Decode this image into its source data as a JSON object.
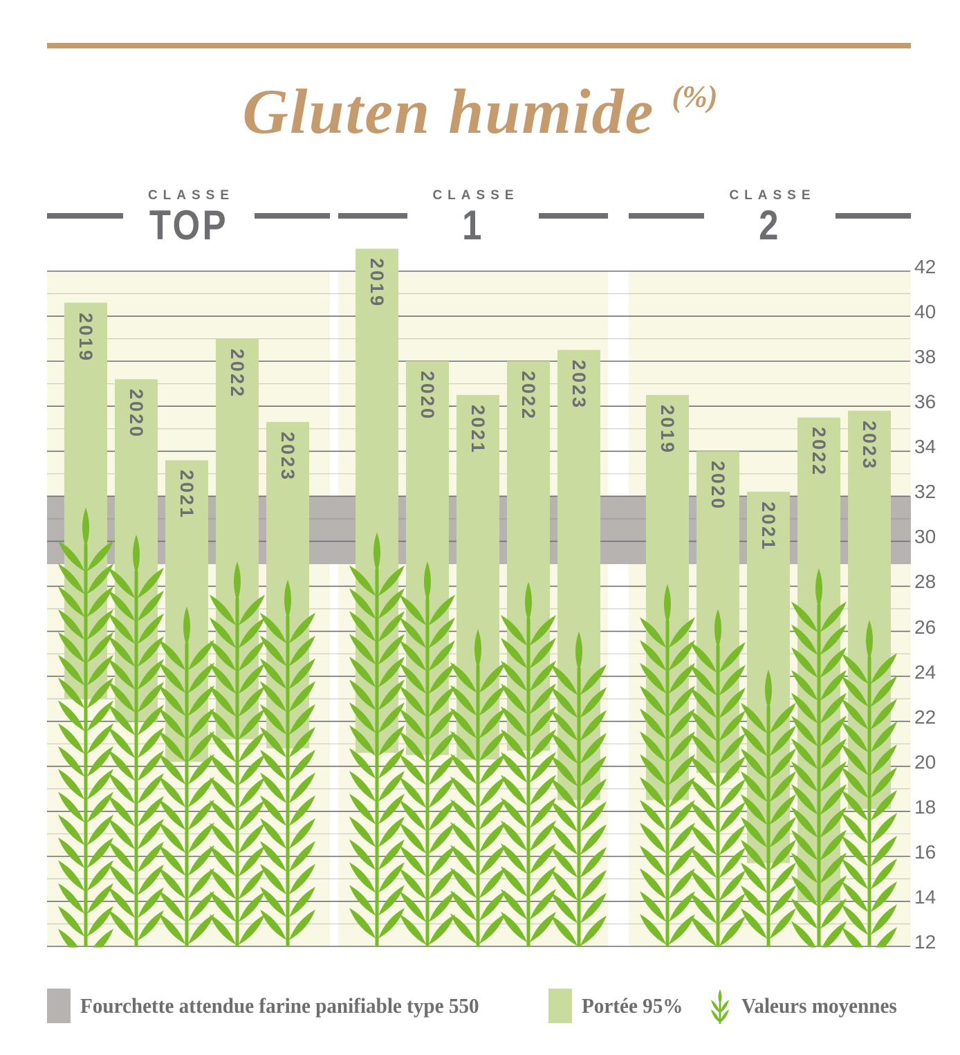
{
  "title": {
    "text": "Gluten humide",
    "unit": "(%)"
  },
  "axis": {
    "min": 12,
    "max": 42,
    "grid_step": 1,
    "label_step": 2,
    "side": "right",
    "tick_labels": [
      42,
      40,
      38,
      36,
      34,
      32,
      30,
      28,
      26,
      24,
      22,
      20,
      18,
      16,
      14,
      12
    ]
  },
  "chart_data": {
    "type": "bar",
    "title": "Gluten humide (%)",
    "unit": "%",
    "ylim": [
      12,
      42
    ],
    "grid": true,
    "legend_position": "bottom",
    "categories": [
      "2019",
      "2020",
      "2021",
      "2022",
      "2023"
    ],
    "expected_range": {
      "min": 29,
      "max": 32,
      "label": "Fourchette attendue farine panifiable type 550"
    },
    "panels": [
      {
        "header": {
          "eyebrow": "CLASSE",
          "name": "TOP"
        },
        "years": [
          {
            "year": "2019",
            "portee_min": 23.0,
            "portee_max": 40.6,
            "moyenne": 31.5
          },
          {
            "year": "2020",
            "portee_min": 22.0,
            "portee_max": 37.2,
            "moyenne": 30.3
          },
          {
            "year": "2021",
            "portee_min": 20.2,
            "portee_max": 33.6,
            "moyenne": 27.1
          },
          {
            "year": "2022",
            "portee_min": 21.2,
            "portee_max": 39.0,
            "moyenne": 29.1
          },
          {
            "year": "2023",
            "portee_min": 20.8,
            "portee_max": 35.3,
            "moyenne": 28.3
          }
        ]
      },
      {
        "header": {
          "eyebrow": "CLASSE",
          "name": "1"
        },
        "years": [
          {
            "year": "2019",
            "portee_min": 20.6,
            "portee_max": 43.0,
            "moyenne": 30.4
          },
          {
            "year": "2020",
            "portee_min": 20.5,
            "portee_max": 38.0,
            "moyenne": 29.1
          },
          {
            "year": "2021",
            "portee_min": 20.3,
            "portee_max": 36.5,
            "moyenne": 26.1
          },
          {
            "year": "2022",
            "portee_min": 20.7,
            "portee_max": 38.0,
            "moyenne": 28.2
          },
          {
            "year": "2023",
            "portee_min": 18.5,
            "portee_max": 38.5,
            "moyenne": 26.0
          }
        ]
      },
      {
        "header": {
          "eyebrow": "CLASSE",
          "name": "2"
        },
        "years": [
          {
            "year": "2019",
            "portee_min": 18.5,
            "portee_max": 36.5,
            "moyenne": 28.1
          },
          {
            "year": "2020",
            "portee_min": 19.7,
            "portee_max": 34.0,
            "moyenne": 27.0
          },
          {
            "year": "2021",
            "portee_min": 15.7,
            "portee_max": 32.2,
            "moyenne": 24.3
          },
          {
            "year": "2022",
            "portee_min": 14.0,
            "portee_max": 35.5,
            "moyenne": 28.8
          },
          {
            "year": "2023",
            "portee_min": 18.1,
            "portee_max": 35.8,
            "moyenne": 26.5
          }
        ]
      }
    ]
  },
  "legend": {
    "items": [
      {
        "swatch": "gray-square",
        "label": "Fourchette attendue farine panifiable type 550"
      },
      {
        "swatch": "green-square",
        "label": "Portée 95%"
      },
      {
        "swatch": "wheat-icon",
        "label": "Valeurs moyennes"
      }
    ]
  },
  "colors": {
    "accent_tan": "#c59b6d",
    "text_gray": "#6d6e71",
    "cream_background": "#f9f8e4",
    "bar_green": "#c9db9e",
    "wheat_green": "#79ba2b",
    "band_gray": "#b6b3b0"
  }
}
